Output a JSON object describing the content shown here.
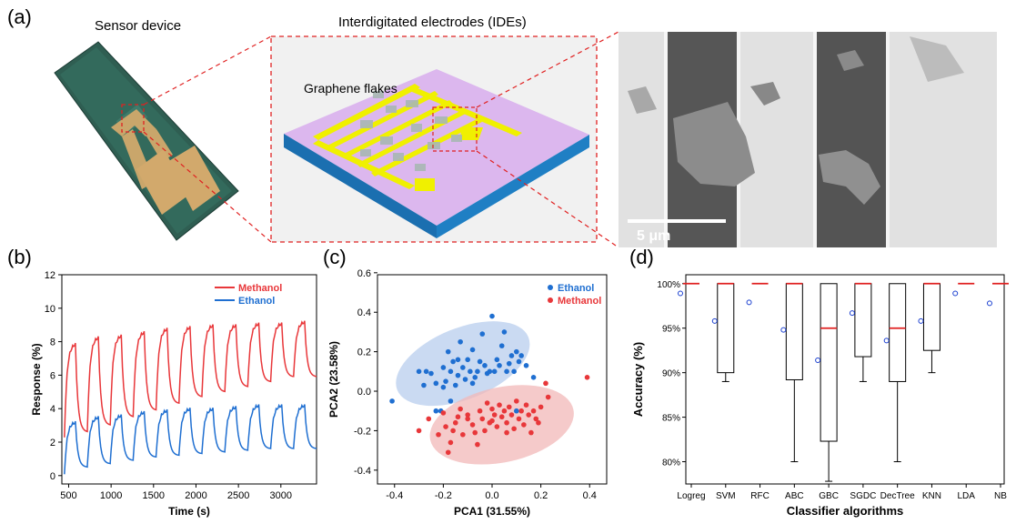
{
  "panels": {
    "a": {
      "label": "(a)",
      "device_caption": "Sensor device",
      "ide_caption": "Interdigitated electrodes (IDEs)",
      "flakes_label": "Graphene flakes",
      "scale_bar": "5 μm"
    },
    "b": {
      "label": "(b)"
    },
    "c": {
      "label": "(c)"
    },
    "d": {
      "label": "(d)"
    }
  },
  "colors": {
    "methanol": "#e8373a",
    "ethanol": "#1f6fd1",
    "ethanol_fill": "#b8cdee",
    "methanol_fill": "#f1b8b8",
    "substrate_top": "#d8b2ee",
    "substrate_side": "#1b6fb0",
    "electrode": "#f0f000"
  },
  "chart_data": [
    {
      "type": "line",
      "xlabel": "Time (s)",
      "ylabel": "Response (%)",
      "xlim": [
        420,
        3420
      ],
      "ylim": [
        -0.5,
        12
      ],
      "xticks": [
        500,
        1000,
        1500,
        2000,
        2500,
        3000
      ],
      "yticks": [
        0,
        2,
        4,
        6,
        8,
        10,
        12
      ],
      "series": [
        {
          "name": "Methanol",
          "color": "#e8373a",
          "cycles": 11,
          "start": 450,
          "period": 270,
          "baseline": [
            2.2,
            2.6,
            3.0,
            3.5,
            3.9,
            4.3,
            4.7,
            5.0,
            5.3,
            5.6,
            5.9
          ],
          "peak": [
            7.9,
            8.3,
            8.4,
            8.6,
            8.8,
            8.9,
            9.0,
            9.0,
            9.1,
            9.1,
            9.2
          ]
        },
        {
          "name": "Ethanol",
          "color": "#1f6fd1",
          "cycles": 11,
          "start": 450,
          "period": 270,
          "baseline": [
            0.0,
            0.5,
            0.7,
            0.9,
            1.1,
            1.2,
            1.3,
            1.4,
            1.5,
            1.6,
            1.6
          ],
          "peak": [
            3.2,
            3.5,
            3.6,
            3.8,
            3.9,
            4.0,
            4.0,
            4.1,
            4.2,
            4.2,
            4.2
          ]
        }
      ],
      "legend": "top-right"
    },
    {
      "type": "scatter",
      "xlabel": "PCA1 (31.55%)",
      "ylabel": "PCA2 (23.58%)",
      "xlim": [
        -0.47,
        0.47
      ],
      "ylim": [
        -0.47,
        0.59
      ],
      "xticks": [
        -0.4,
        -0.2,
        0.0,
        0.2,
        0.4
      ],
      "yticks": [
        -0.4,
        -0.2,
        0.0,
        0.2,
        0.4,
        0.6
      ],
      "legend": "top-right",
      "ellipses": [
        {
          "series": "Ethanol",
          "cx": -0.12,
          "cy": 0.14,
          "rx": 0.29,
          "ry": 0.18,
          "angle": 22
        },
        {
          "series": "Methanol",
          "cx": 0.04,
          "cy": -0.17,
          "rx": 0.3,
          "ry": 0.19,
          "angle": 12
        }
      ],
      "series": [
        {
          "name": "Ethanol",
          "color": "#1f6fd1",
          "points": [
            [
              -0.41,
              -0.05
            ],
            [
              -0.3,
              0.1
            ],
            [
              -0.28,
              0.03
            ],
            [
              -0.25,
              0.09
            ],
            [
              -0.23,
              -0.1
            ],
            [
              -0.21,
              -0.1
            ],
            [
              -0.2,
              0.02
            ],
            [
              -0.19,
              0.05
            ],
            [
              -0.18,
              0.2
            ],
            [
              -0.17,
              0.1
            ],
            [
              -0.16,
              0.15
            ],
            [
              -0.15,
              0.03
            ],
            [
              -0.14,
              0.08
            ],
            [
              -0.13,
              0.25
            ],
            [
              -0.12,
              0.12
            ],
            [
              -0.11,
              0.06
            ],
            [
              -0.1,
              0.16
            ],
            [
              -0.09,
              0.1
            ],
            [
              -0.08,
              0.21
            ],
            [
              -0.07,
              0.07
            ],
            [
              -0.06,
              0.1
            ],
            [
              -0.05,
              0.15
            ],
            [
              -0.04,
              0.29
            ],
            [
              -0.03,
              0.13
            ],
            [
              -0.02,
              0.09
            ],
            [
              -0.01,
              0.1
            ],
            [
              0.0,
              0.38
            ],
            [
              0.01,
              0.1
            ],
            [
              0.02,
              0.16
            ],
            [
              0.03,
              0.13
            ],
            [
              0.04,
              0.23
            ],
            [
              0.05,
              0.3
            ],
            [
              0.06,
              0.1
            ],
            [
              0.07,
              0.14
            ],
            [
              0.08,
              0.18
            ],
            [
              0.09,
              0.1
            ],
            [
              0.1,
              0.2
            ],
            [
              0.11,
              0.15
            ],
            [
              0.12,
              0.18
            ],
            [
              0.14,
              0.13
            ],
            [
              -0.17,
              -0.05
            ],
            [
              -0.2,
              0.12
            ],
            [
              -0.27,
              0.1
            ],
            [
              -0.23,
              0.04
            ],
            [
              0.17,
              0.07
            ],
            [
              0.1,
              -0.1
            ],
            [
              -0.08,
              0.04
            ],
            [
              -0.14,
              0.16
            ]
          ]
        },
        {
          "name": "Methanol",
          "color": "#e8373a",
          "points": [
            [
              -0.3,
              -0.2
            ],
            [
              -0.26,
              -0.14
            ],
            [
              -0.22,
              -0.22
            ],
            [
              -0.2,
              -0.11
            ],
            [
              -0.19,
              -0.18
            ],
            [
              -0.18,
              -0.31
            ],
            [
              -0.17,
              -0.26
            ],
            [
              -0.16,
              -0.2
            ],
            [
              -0.15,
              -0.16
            ],
            [
              -0.13,
              -0.09
            ],
            [
              -0.12,
              -0.22
            ],
            [
              -0.1,
              -0.12
            ],
            [
              -0.08,
              -0.17
            ],
            [
              -0.06,
              -0.27
            ],
            [
              -0.05,
              -0.1
            ],
            [
              -0.04,
              -0.14
            ],
            [
              -0.03,
              -0.2
            ],
            [
              -0.02,
              -0.06
            ],
            [
              -0.01,
              -0.16
            ],
            [
              0.0,
              -0.09
            ],
            [
              0.01,
              -0.12
            ],
            [
              0.02,
              -0.18
            ],
            [
              0.03,
              -0.07
            ],
            [
              0.04,
              -0.13
            ],
            [
              0.05,
              -0.1
            ],
            [
              0.06,
              -0.16
            ],
            [
              0.07,
              -0.08
            ],
            [
              0.08,
              -0.12
            ],
            [
              0.09,
              -0.19
            ],
            [
              0.1,
              -0.05
            ],
            [
              0.11,
              -0.14
            ],
            [
              0.12,
              -0.1
            ],
            [
              0.13,
              -0.17
            ],
            [
              0.14,
              -0.07
            ],
            [
              0.15,
              -0.12
            ],
            [
              0.16,
              -0.21
            ],
            [
              0.17,
              -0.1
            ],
            [
              0.18,
              -0.14
            ],
            [
              0.19,
              -0.16
            ],
            [
              0.2,
              -0.08
            ],
            [
              0.22,
              0.04
            ],
            [
              0.23,
              -0.03
            ],
            [
              0.39,
              0.07
            ],
            [
              -0.07,
              -0.21
            ],
            [
              -0.1,
              -0.14
            ],
            [
              0.0,
              -0.15
            ],
            [
              0.06,
              -0.21
            ],
            [
              -0.14,
              -0.13
            ]
          ]
        }
      ]
    },
    {
      "type": "box",
      "xlabel": "Classifier algorithms",
      "ylabel": "Accuracy (%)",
      "ylim": [
        77.5,
        101
      ],
      "yticks": [
        "80%",
        "85%",
        "90%",
        "95%",
        "100%"
      ],
      "ytick_values": [
        80,
        85,
        90,
        95,
        100
      ],
      "categories": [
        "Logreg",
        "SVM",
        "RFC",
        "ABC",
        "GBC",
        "SGDC",
        "DecTree",
        "KNN",
        "LDA",
        "NB"
      ],
      "boxes": [
        {
          "min": 100,
          "q1": 100,
          "median": 100,
          "q3": 100,
          "max": 100,
          "mean": 98.9
        },
        {
          "min": 89,
          "q1": 90,
          "median": 100,
          "q3": 100,
          "max": 100,
          "mean": 95.8
        },
        {
          "min": 100,
          "q1": 100,
          "median": 100,
          "q3": 100,
          "max": 100,
          "mean": 97.9
        },
        {
          "min": 80,
          "q1": 89.2,
          "median": 100,
          "q3": 100,
          "max": 100,
          "mean": 94.8
        },
        {
          "min": 77.8,
          "q1": 82.3,
          "median": 95,
          "q3": 100,
          "max": 100,
          "mean": 91.4
        },
        {
          "min": 89,
          "q1": 91.8,
          "median": 100,
          "q3": 100,
          "max": 100,
          "mean": 96.7
        },
        {
          "min": 80,
          "q1": 89,
          "median": 95,
          "q3": 100,
          "max": 100,
          "mean": 93.6
        },
        {
          "min": 90,
          "q1": 92.5,
          "median": 100,
          "q3": 100,
          "max": 100,
          "mean": 95.8
        },
        {
          "min": 100,
          "q1": 100,
          "median": 100,
          "q3": 100,
          "max": 100,
          "mean": 98.9
        },
        {
          "min": 100,
          "q1": 100,
          "median": 100,
          "q3": 100,
          "max": 100,
          "mean": 97.8
        }
      ]
    }
  ]
}
